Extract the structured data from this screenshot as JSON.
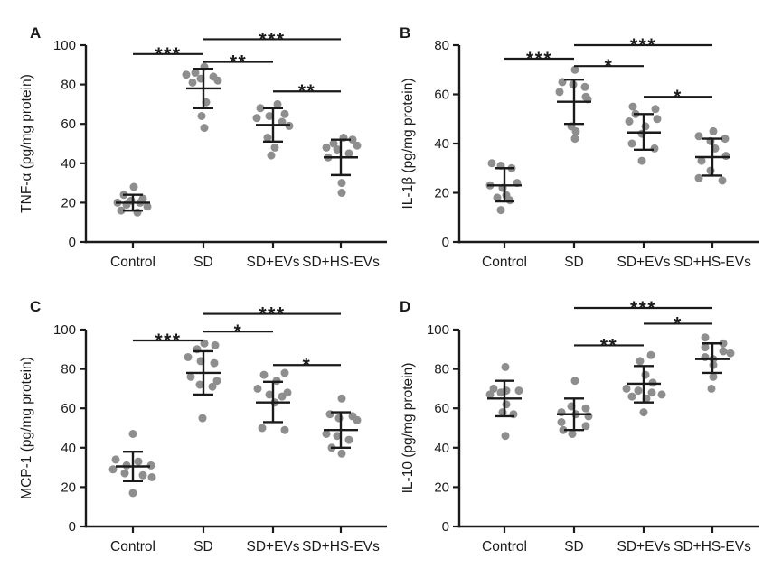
{
  "figure": {
    "background": "#ffffff",
    "dot_color": "#8e8e8e",
    "line_color": "#1a1a1a",
    "text_color": "#1a1a1a",
    "panel_letters": [
      "A",
      "B",
      "C",
      "D"
    ]
  },
  "chart_data": [
    {
      "type": "scatter",
      "panel_label": "A",
      "title": "",
      "xlabel": "",
      "ylabel": "TNF-α (pg/mg protein)",
      "ylim": [
        0,
        100
      ],
      "yticks": [
        0,
        20,
        40,
        60,
        80,
        100
      ],
      "categories": [
        "Control",
        "SD",
        "SD+EVs",
        "SD+HS-EVs"
      ],
      "groups": [
        {
          "name": "Control",
          "mean": 20,
          "sd_low": 16,
          "sd_high": 24,
          "values": [
            28,
            24,
            22,
            21,
            20,
            20,
            19,
            18,
            16,
            15
          ],
          "jitter": [
            1,
            -10,
            11,
            -2,
            -17,
            8,
            -7,
            16,
            -13,
            5
          ]
        },
        {
          "name": "SD",
          "mean": 78,
          "sd_low": 68,
          "sd_high": 88,
          "values": [
            89,
            86,
            85,
            84,
            83,
            82,
            81,
            71,
            64,
            58
          ],
          "jitter": [
            1,
            -9,
            -19,
            11,
            -3,
            16,
            -12,
            3,
            -2,
            1
          ]
        },
        {
          "name": "SD+EVs",
          "mean": 59.5,
          "sd_low": 51,
          "sd_high": 68,
          "values": [
            70,
            68,
            65,
            64,
            63,
            61,
            59,
            53,
            48,
            44
          ],
          "jitter": [
            5,
            -14,
            13,
            -4,
            -18,
            10,
            18,
            -6,
            2,
            -2
          ]
        },
        {
          "name": "SD+HS-EVs",
          "mean": 43,
          "sd_low": 34,
          "sd_high": 52,
          "values": [
            53,
            52,
            50,
            49,
            48,
            47,
            45,
            43,
            30,
            25
          ],
          "jitter": [
            3,
            13,
            -8,
            18,
            -16,
            -4,
            9,
            -14,
            1,
            1
          ]
        }
      ],
      "significance": [
        {
          "between": [
            "SD",
            "SD+HS-EVs"
          ],
          "label": "***",
          "y": 103
        },
        {
          "between": [
            "Control",
            "SD"
          ],
          "label": "***",
          "y": 95.5
        },
        {
          "between": [
            "SD",
            "SD+EVs"
          ],
          "label": "**",
          "y": 91.5
        },
        {
          "between": [
            "SD+EVs",
            "SD+HS-EVs"
          ],
          "label": "**",
          "y": 76.5
        }
      ]
    },
    {
      "type": "scatter",
      "panel_label": "B",
      "title": "",
      "xlabel": "",
      "ylabel": "IL-1β (pg/mg protein)",
      "ylim": [
        0,
        80
      ],
      "yticks": [
        0,
        20,
        40,
        60,
        80
      ],
      "categories": [
        "Control",
        "SD",
        "SD+EVs",
        "SD+HS-EVs"
      ],
      "groups": [
        {
          "name": "Control",
          "mean": 23,
          "sd_low": 16.5,
          "sd_high": 30,
          "values": [
            32,
            31,
            30,
            24,
            23,
            22,
            19,
            18,
            17,
            13
          ],
          "jitter": [
            -14,
            -4,
            8,
            14,
            -16,
            -2,
            2,
            -8,
            6,
            -4
          ]
        },
        {
          "name": "SD",
          "mean": 57,
          "sd_low": 48,
          "sd_high": 66,
          "values": [
            70,
            65,
            64,
            63,
            61,
            59,
            58,
            47,
            45,
            42
          ],
          "jitter": [
            1,
            -13,
            -1,
            12,
            -16,
            13,
            15,
            -3,
            2,
            1
          ]
        },
        {
          "name": "SD+EVs",
          "mean": 44.5,
          "sd_low": 37.5,
          "sd_high": 52,
          "values": [
            55,
            54,
            52,
            50,
            49,
            47,
            44,
            40,
            38,
            33
          ],
          "jitter": [
            -12,
            13,
            -9,
            15,
            -16,
            2,
            -2,
            -13,
            12,
            -2
          ]
        },
        {
          "name": "SD+HS-EVs",
          "mean": 34.5,
          "sd_low": 27,
          "sd_high": 42,
          "values": [
            45,
            43,
            42,
            41,
            38,
            35,
            33,
            29,
            26,
            25
          ],
          "jitter": [
            1,
            -15,
            14,
            -2,
            3,
            15,
            -12,
            -2,
            -15,
            11
          ]
        }
      ],
      "significance": [
        {
          "between": [
            "SD",
            "SD+HS-EVs"
          ],
          "label": "***",
          "y": 80
        },
        {
          "between": [
            "Control",
            "SD"
          ],
          "label": "***",
          "y": 74.5
        },
        {
          "between": [
            "SD",
            "SD+EVs"
          ],
          "label": "*",
          "y": 71.5
        },
        {
          "between": [
            "SD+EVs",
            "SD+HS-EVs"
          ],
          "label": "*",
          "y": 59
        }
      ]
    },
    {
      "type": "scatter",
      "panel_label": "C",
      "title": "",
      "xlabel": "",
      "ylabel": "MCP-1 (pg/mg protein)",
      "ylim": [
        0,
        100
      ],
      "yticks": [
        0,
        20,
        40,
        60,
        80,
        100
      ],
      "categories": [
        "Control",
        "SD",
        "SD+EVs",
        "SD+HS-EVs"
      ],
      "groups": [
        {
          "name": "Control",
          "mean": 30.5,
          "sd_low": 23,
          "sd_high": 38,
          "values": [
            47,
            34,
            33,
            31,
            31,
            29,
            27,
            26,
            25,
            17
          ],
          "jitter": [
            0,
            -19,
            6,
            -7,
            20,
            -22,
            -9,
            11,
            21,
            0
          ]
        },
        {
          "name": "SD",
          "mean": 78,
          "sd_low": 67,
          "sd_high": 89,
          "values": [
            93,
            92,
            90,
            86,
            84,
            83,
            76,
            74,
            72,
            71,
            55
          ],
          "jitter": [
            1,
            13,
            -7,
            -17,
            -3,
            12,
            -14,
            15,
            -4,
            10,
            -1
          ]
        },
        {
          "name": "SD+EVs",
          "mean": 63,
          "sd_low": 53,
          "sd_high": 73.5,
          "values": [
            78,
            77,
            74,
            70,
            68,
            67,
            66,
            63,
            50,
            49
          ],
          "jitter": [
            13,
            -10,
            4,
            -17,
            16,
            -4,
            10,
            2,
            -12,
            13
          ]
        },
        {
          "name": "SD+HS-EVs",
          "mean": 49,
          "sd_low": 40,
          "sd_high": 58,
          "values": [
            65,
            57,
            56,
            55,
            54,
            47,
            46,
            44,
            40,
            37
          ],
          "jitter": [
            1,
            -12,
            13,
            -2,
            18,
            -16,
            -4,
            9,
            -10,
            1
          ]
        }
      ],
      "significance": [
        {
          "between": [
            "SD",
            "SD+HS-EVs"
          ],
          "label": "***",
          "y": 108
        },
        {
          "between": [
            "SD",
            "SD+EVs"
          ],
          "label": "*",
          "y": 99
        },
        {
          "between": [
            "Control",
            "SD"
          ],
          "label": "***",
          "y": 94.5
        },
        {
          "between": [
            "SD+EVs",
            "SD+HS-EVs"
          ],
          "label": "*",
          "y": 82
        }
      ]
    },
    {
      "type": "scatter",
      "panel_label": "D",
      "title": "",
      "xlabel": "",
      "ylabel": "IL-10 (pg/mg protein)",
      "ylim": [
        0,
        100
      ],
      "yticks": [
        0,
        20,
        40,
        60,
        80,
        100
      ],
      "categories": [
        "Control",
        "SD",
        "SD+EVs",
        "SD+HS-EVs"
      ],
      "groups": [
        {
          "name": "Control",
          "mean": 65,
          "sd_low": 56,
          "sd_high": 74,
          "values": [
            81,
            70,
            69,
            69,
            68,
            67,
            62,
            58,
            57,
            46
          ],
          "jitter": [
            1,
            -12,
            2,
            16,
            -4,
            -16,
            2,
            -2,
            10,
            1
          ]
        },
        {
          "name": "SD",
          "mean": 57,
          "sd_low": 49,
          "sd_high": 65,
          "values": [
            74,
            61,
            60,
            58,
            57,
            56,
            53,
            51,
            49,
            47
          ],
          "jitter": [
            1,
            -3,
            13,
            -14,
            2,
            16,
            -14,
            13,
            -12,
            -2
          ]
        },
        {
          "name": "SD+EVs",
          "mean": 72.5,
          "sd_low": 63,
          "sd_high": 81.5,
          "values": [
            87,
            84,
            77,
            73,
            70,
            69,
            68,
            67,
            66,
            65,
            58
          ],
          "jitter": [
            8,
            -4,
            2,
            10,
            -19,
            -6,
            9,
            20,
            -13,
            3,
            0
          ]
        },
        {
          "name": "SD+HS-EVs",
          "mean": 85,
          "sd_low": 78,
          "sd_high": 93,
          "values": [
            96,
            93,
            91,
            89,
            88,
            86,
            85,
            82,
            76,
            70
          ],
          "jitter": [
            -8,
            12,
            -8,
            12,
            20,
            -8,
            1,
            1,
            1,
            -1
          ]
        }
      ],
      "significance": [
        {
          "between": [
            "SD",
            "SD+HS-EVs"
          ],
          "label": "***",
          "y": 111
        },
        {
          "between": [
            "SD+EVs",
            "SD+HS-EVs"
          ],
          "label": "*",
          "y": 103
        },
        {
          "between": [
            "SD",
            "SD+EVs"
          ],
          "label": "**",
          "y": 92
        }
      ]
    }
  ]
}
